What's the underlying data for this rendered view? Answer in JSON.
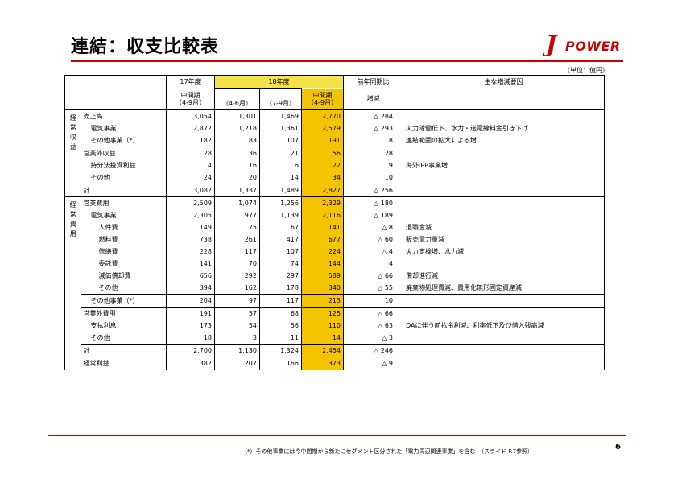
{
  "page_title": "連結：収支比較表",
  "logo": {
    "j": "J",
    "text": "POWER"
  },
  "unit_note": "（単位：億円）",
  "page_number": "6",
  "footnote": "（*）その他事業には今中間期から新たにセグメント区分された「電力周辺関連事業」を含む　（スライド P.7参照）",
  "colors": {
    "accent_red": "#cc0000",
    "highlight_yellow": "#f5c400"
  },
  "header": {
    "fy17": "17年度",
    "fy18": "18年度",
    "prev_yoy": "前年同期比",
    "main_factors": "主な増減要因",
    "interim": "中間期",
    "interim_period": "（4-9月）",
    "q1": "（4-6月）",
    "q2": "（7-9月）",
    "change": "増減"
  },
  "sections": {
    "revenue": "経常収益",
    "expense": "経常費用"
  },
  "rows": [
    {
      "label": "売上高",
      "fy17": "3,054",
      "q1": "1,301",
      "q2": "1,469",
      "fy18": "2,770",
      "change": "△ 284",
      "reason": ""
    },
    {
      "label": "電気事業",
      "fy17": "2,872",
      "q1": "1,218",
      "q2": "1,361",
      "fy18": "2,579",
      "change": "△ 293",
      "reason": "火力稼働低下、水力・送電線料金引き下げ"
    },
    {
      "label": "その他事業（*）",
      "fy17": "182",
      "q1": "83",
      "q2": "107",
      "fy18": "191",
      "change": "8",
      "reason": "連結範囲の拡大による増"
    },
    {
      "label": "営業外収益",
      "fy17": "28",
      "q1": "36",
      "q2": "21",
      "fy18": "56",
      "change": "28",
      "reason": ""
    },
    {
      "label": "持分法投資利益",
      "fy17": "4",
      "q1": "16",
      "q2": "6",
      "fy18": "22",
      "change": "19",
      "reason": "海外IPP事業増"
    },
    {
      "label": "その他",
      "fy17": "24",
      "q1": "20",
      "q2": "14",
      "fy18": "34",
      "change": "10",
      "reason": ""
    },
    {
      "label": "計",
      "fy17": "3,082",
      "q1": "1,337",
      "q2": "1,489",
      "fy18": "2,827",
      "change": "△ 256",
      "reason": ""
    },
    {
      "label": "営業費用",
      "fy17": "2,509",
      "q1": "1,074",
      "q2": "1,256",
      "fy18": "2,329",
      "change": "△ 180",
      "reason": ""
    },
    {
      "label": "電気事業",
      "fy17": "2,305",
      "q1": "977",
      "q2": "1,139",
      "fy18": "2,116",
      "change": "△ 189",
      "reason": ""
    },
    {
      "label": "人件費",
      "fy17": "149",
      "q1": "75",
      "q2": "67",
      "fy18": "141",
      "change": "△ 8",
      "reason": "退職金減"
    },
    {
      "label": "燃料費",
      "fy17": "738",
      "q1": "261",
      "q2": "417",
      "fy18": "677",
      "change": "△ 60",
      "reason": "販売電力量減"
    },
    {
      "label": "修繕費",
      "fy17": "228",
      "q1": "117",
      "q2": "107",
      "fy18": "224",
      "change": "△ 4",
      "reason": "火力定検増、水力減"
    },
    {
      "label": "委託費",
      "fy17": "141",
      "q1": "70",
      "q2": "74",
      "fy18": "144",
      "change": "4",
      "reason": ""
    },
    {
      "label": "減価償却費",
      "fy17": "656",
      "q1": "292",
      "q2": "297",
      "fy18": "589",
      "change": "△ 66",
      "reason": "償却進行減"
    },
    {
      "label": "その他",
      "fy17": "394",
      "q1": "162",
      "q2": "178",
      "fy18": "340",
      "change": "△ 55",
      "reason": "廃棄物処理費減、費用化無形固定資産減"
    },
    {
      "label": "その他事業（*）",
      "fy17": "204",
      "q1": "97",
      "q2": "117",
      "fy18": "213",
      "change": "10",
      "reason": ""
    },
    {
      "label": "営業外費用",
      "fy17": "191",
      "q1": "57",
      "q2": "68",
      "fy18": "125",
      "change": "△ 66",
      "reason": ""
    },
    {
      "label": "支払利息",
      "fy17": "173",
      "q1": "54",
      "q2": "56",
      "fy18": "110",
      "change": "△ 63",
      "reason": "DAに伴う前払金利減、利率低下及び借入残高減"
    },
    {
      "label": "その他",
      "fy17": "18",
      "q1": "3",
      "q2": "11",
      "fy18": "14",
      "change": "△ 3",
      "reason": ""
    },
    {
      "label": "計",
      "fy17": "2,700",
      "q1": "1,130",
      "q2": "1,324",
      "fy18": "2,454",
      "change": "△ 246",
      "reason": ""
    },
    {
      "label": "経常利益",
      "fy17": "382",
      "q1": "207",
      "q2": "166",
      "fy18": "373",
      "change": "△ 9",
      "reason": ""
    }
  ]
}
